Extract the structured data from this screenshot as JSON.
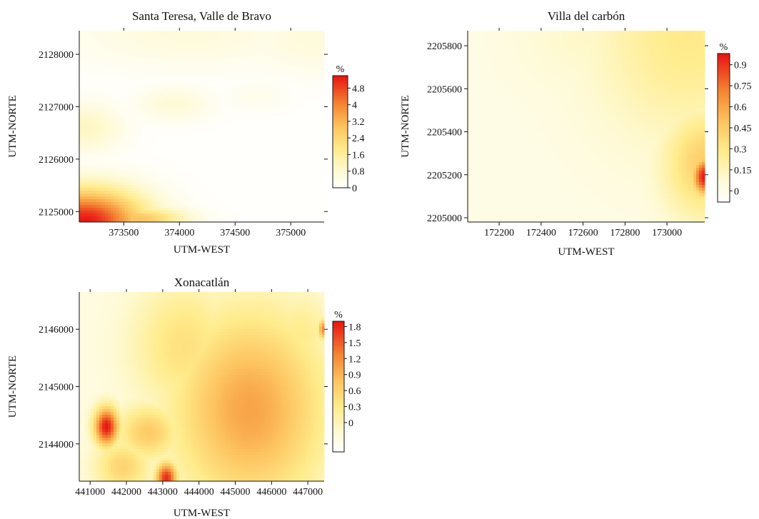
{
  "chart_data": [
    {
      "type": "heatmap",
      "title": "Santa Teresa, Valle de Bravo",
      "xlabel": "UTM-WEST",
      "ylabel": "UTM-NORTE",
      "xlim": [
        373100,
        375300
      ],
      "ylim": [
        2124800,
        2128450
      ],
      "xticks": [
        373500,
        374000,
        374500,
        375000
      ],
      "yticks": [
        2125000,
        2126000,
        2127000,
        2128000
      ],
      "colorbar": {
        "unit": "%",
        "min": 0,
        "max": 5.4,
        "ticks": [
          "0",
          "0.8",
          "1.6",
          "2.4",
          "3.2",
          "4",
          "4.8"
        ]
      },
      "hotspots": [
        {
          "x": 373150,
          "y": 2124800,
          "value": 5.4,
          "rx": 550,
          "ry": 650
        },
        {
          "x": 373600,
          "y": 2124850,
          "value": 3.0,
          "rx": 450,
          "ry": 250
        },
        {
          "x": 373150,
          "y": 2126600,
          "value": 1.1,
          "rx": 350,
          "ry": 500
        },
        {
          "x": 373950,
          "y": 2127050,
          "value": 0.8,
          "rx": 350,
          "ry": 350
        },
        {
          "x": 375200,
          "y": 2128300,
          "value": 0.7,
          "rx": 700,
          "ry": 700
        },
        {
          "x": 374100,
          "y": 2128400,
          "value": 0.7,
          "rx": 1200,
          "ry": 700
        },
        {
          "x": 374700,
          "y": 2127200,
          "value": 0.4,
          "rx": 300,
          "ry": 300
        }
      ],
      "base": 0.05
    },
    {
      "type": "heatmap",
      "title": "Villa del carbón",
      "xlabel": "UTM-WEST",
      "ylabel": "UTM-NORTE",
      "xlim": [
        172050,
        173180
      ],
      "ylim": [
        2204980,
        2205870
      ],
      "xticks": [
        172200,
        172400,
        172600,
        172800,
        173000
      ],
      "yticks": [
        2205000,
        2205200,
        2205400,
        2205600,
        2205800
      ],
      "colorbar": {
        "unit": "%",
        "min": -0.08,
        "max": 0.98,
        "ticks": [
          "0",
          "0.15",
          "0.3",
          "0.45",
          "0.6",
          "0.75",
          "0.9"
        ]
      },
      "hotspots": [
        {
          "x": 173180,
          "y": 2205190,
          "value": 0.98,
          "rx": 60,
          "ry": 90
        },
        {
          "x": 173180,
          "y": 2205250,
          "value": 0.45,
          "rx": 200,
          "ry": 260
        },
        {
          "x": 173100,
          "y": 2205850,
          "value": 0.3,
          "rx": 450,
          "ry": 500
        },
        {
          "x": 172650,
          "y": 2205870,
          "value": 0.12,
          "rx": 350,
          "ry": 300
        }
      ],
      "base": 0.02
    },
    {
      "type": "heatmap",
      "title": "Xonacatlán",
      "xlabel": "UTM-WEST",
      "ylabel": "UTM-NORTE",
      "xlim": [
        440700,
        447450
      ],
      "ylim": [
        2143350,
        2146650
      ],
      "xticks": [
        441000,
        442000,
        443000,
        444000,
        445000,
        446000,
        447000
      ],
      "yticks": [
        2144000,
        2145000,
        2146000
      ],
      "colorbar": {
        "unit": "%",
        "min": -0.55,
        "max": 1.9,
        "ticks": [
          "0",
          "0.3",
          "0.6",
          "0.9",
          "1.2",
          "1.5",
          "1.8"
        ]
      },
      "hotspots": [
        {
          "x": 441450,
          "y": 2144300,
          "value": 1.9,
          "rx": 350,
          "ry": 350
        },
        {
          "x": 443100,
          "y": 2143400,
          "value": 1.8,
          "rx": 300,
          "ry": 280
        },
        {
          "x": 447450,
          "y": 2146000,
          "value": 1.3,
          "rx": 180,
          "ry": 180
        },
        {
          "x": 445400,
          "y": 2144600,
          "value": 1.05,
          "rx": 2200,
          "ry": 1800
        },
        {
          "x": 442600,
          "y": 2144200,
          "value": 0.7,
          "rx": 900,
          "ry": 500
        },
        {
          "x": 441900,
          "y": 2143600,
          "value": 0.6,
          "rx": 800,
          "ry": 500
        },
        {
          "x": 443600,
          "y": 2145700,
          "value": 0.45,
          "rx": 1500,
          "ry": 1200
        },
        {
          "x": 446800,
          "y": 2145900,
          "value": 0.3,
          "rx": 900,
          "ry": 800
        }
      ],
      "base": -0.3
    }
  ]
}
